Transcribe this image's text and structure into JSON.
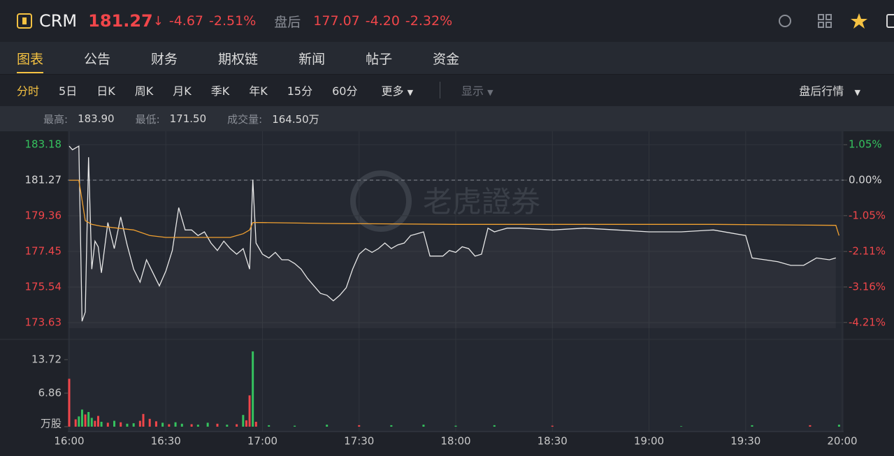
{
  "header": {
    "symbol": "CRM",
    "price": "181.27",
    "change": "-4.67",
    "change_pct": "-2.51%",
    "after_hours_label": "盘后",
    "after_price": "177.07",
    "after_change": "-4.20",
    "after_change_pct": "-2.32%"
  },
  "tabs": [
    "图表",
    "公告",
    "财务",
    "期权链",
    "新闻",
    "帖子",
    "资金"
  ],
  "periods": [
    "分时",
    "5日",
    "日K",
    "周K",
    "月K",
    "季K",
    "年K",
    "15分",
    "60分",
    "更多"
  ],
  "display": "显示",
  "after_hours_quote": "盘后行情",
  "stats": [
    {
      "label": "最高:",
      "value": "183.90"
    },
    {
      "label": "最低:",
      "value": "171.50"
    },
    {
      "label": "成交量:",
      "value": "164.50万"
    }
  ],
  "watermark": "老虎證券",
  "chart_data": [
    {
      "type": "line",
      "xlim": [
        960,
        1200
      ],
      "xticks": [
        {
          "value": 960,
          "label": "16:00"
        },
        {
          "value": 990,
          "label": "16:30"
        },
        {
          "value": 1020,
          "label": "17:00"
        },
        {
          "value": 1050,
          "label": "17:30"
        },
        {
          "value": 1080,
          "label": "18:00"
        },
        {
          "value": 1110,
          "label": "18:30"
        },
        {
          "value": 1140,
          "label": "19:00"
        },
        {
          "value": 1170,
          "label": "19:30"
        },
        {
          "value": 1200,
          "label": "20:00"
        }
      ],
      "ylim": [
        173.33,
        183.52
      ],
      "yticks": [
        183.18,
        181.27,
        179.36,
        177.45,
        175.54,
        173.63
      ],
      "ytick_colors": [
        "#35c25e",
        "#d8d8d8",
        "#f0464a",
        "#f0464a",
        "#f0464a",
        "#f0464a"
      ],
      "y2lim": [
        -4.38,
        1.24
      ],
      "y2ticks": [
        {
          "value": 1.05,
          "label": "1.05%"
        },
        {
          "value": 0,
          "label": "0.00%"
        },
        {
          "value": -1.05,
          "label": "-1.05%"
        },
        {
          "value": -2.11,
          "label": "-2.11%"
        },
        {
          "value": -3.16,
          "label": "-3.16%"
        },
        {
          "value": -4.21,
          "label": "-4.21%"
        }
      ],
      "y2tick_colors": [
        "#35c25e",
        "#d8d8d8",
        "#f0464a",
        "#f0464a",
        "#f0464a",
        "#f0464a"
      ],
      "baseline": 181.27,
      "grid": true,
      "series": [
        {
          "color": "#e8e8e8",
          "x": [
            960,
            961,
            963,
            964,
            965,
            966,
            967,
            968,
            969,
            970,
            972,
            974,
            976,
            978,
            980,
            982,
            984,
            986,
            988,
            990,
            992,
            994,
            996,
            998,
            1000,
            1002,
            1004,
            1006,
            1008,
            1010,
            1012,
            1014,
            1016,
            1017,
            1018,
            1020,
            1022,
            1024,
            1026,
            1028,
            1030,
            1032,
            1034,
            1036,
            1038,
            1040,
            1042,
            1044,
            1046,
            1048,
            1050,
            1052,
            1054,
            1056,
            1058,
            1060,
            1062,
            1064,
            1066,
            1068,
            1070,
            1072,
            1074,
            1076,
            1078,
            1080,
            1082,
            1084,
            1086,
            1088,
            1090,
            1092,
            1094,
            1096,
            1100,
            1110,
            1120,
            1130,
            1140,
            1150,
            1160,
            1170,
            1172,
            1176,
            1180,
            1184,
            1188,
            1192,
            1196,
            1198
          ],
          "values": [
            183.1,
            182.9,
            183.1,
            173.7,
            174.2,
            182.5,
            176.5,
            178.0,
            177.7,
            176.3,
            179.0,
            177.6,
            179.3,
            177.8,
            176.5,
            175.8,
            177.0,
            176.3,
            175.6,
            176.4,
            177.5,
            179.8,
            178.6,
            178.6,
            178.3,
            178.5,
            177.9,
            177.5,
            178.0,
            177.6,
            177.3,
            177.6,
            176.5,
            181.3,
            177.9,
            177.3,
            177.1,
            177.4,
            177.0,
            177.0,
            176.8,
            176.5,
            176.0,
            175.6,
            175.2,
            175.1,
            174.8,
            175.1,
            175.5,
            176.5,
            177.3,
            177.6,
            177.4,
            177.6,
            177.9,
            177.6,
            177.8,
            177.9,
            178.3,
            178.4,
            178.5,
            177.2,
            177.2,
            177.2,
            177.5,
            177.4,
            177.7,
            177.6,
            177.2,
            177.3,
            178.7,
            178.5,
            178.6,
            178.7,
            178.7,
            178.6,
            178.7,
            178.6,
            178.5,
            178.5,
            178.6,
            178.3,
            177.1,
            177.0,
            176.9,
            176.7,
            176.7,
            177.1,
            177.0,
            177.1
          ]
        },
        {
          "color": "#f0a030",
          "x": [
            960,
            963,
            964,
            965,
            967,
            970,
            975,
            980,
            985,
            990,
            1000,
            1010,
            1014,
            1016,
            1017,
            1020,
            1040,
            1080,
            1120,
            1160,
            1198,
            1199
          ],
          "values": [
            181.27,
            181.27,
            180.2,
            179.1,
            178.9,
            178.8,
            178.7,
            178.6,
            178.3,
            178.2,
            178.2,
            178.2,
            178.4,
            178.6,
            179.0,
            179.0,
            178.95,
            178.9,
            178.9,
            178.9,
            178.85,
            178.3
          ]
        }
      ]
    },
    {
      "type": "bar",
      "xlim": [
        960,
        1200
      ],
      "ylim": [
        0,
        15.86
      ],
      "yticks": [
        {
          "value": 13.72,
          "label": "13.72"
        },
        {
          "value": 6.86,
          "label": "6.86"
        },
        {
          "value": 0,
          "label": "万股"
        }
      ],
      "up_color": "#35c25e",
      "down_color": "#f0464a",
      "x": [
        960,
        962,
        963,
        964,
        965,
        966,
        967,
        968,
        969,
        970,
        972,
        974,
        976,
        978,
        980,
        982,
        983,
        985,
        987,
        989,
        991,
        993,
        995,
        998,
        1000,
        1003,
        1006,
        1009,
        1012,
        1014,
        1015,
        1016,
        1017,
        1018,
        1022,
        1030,
        1040,
        1050,
        1060,
        1070,
        1080,
        1092,
        1110,
        1150,
        1172,
        1190,
        1199
      ],
      "values": [
        9.8,
        1.5,
        2.1,
        3.5,
        2.5,
        3.0,
        1.8,
        1.2,
        2.2,
        1.0,
        0.8,
        1.2,
        0.9,
        0.6,
        0.7,
        1.2,
        2.6,
        1.6,
        1.1,
        0.8,
        0.5,
        0.9,
        0.6,
        0.5,
        0.4,
        0.8,
        0.6,
        0.4,
        0.5,
        2.4,
        1.3,
        6.4,
        15.4,
        1.0,
        0.3,
        0.2,
        0.4,
        0.3,
        0.3,
        0.4,
        0.2,
        0.3,
        0.2,
        0.1,
        0.3,
        0.3,
        0.4
      ],
      "up": [
        false,
        false,
        true,
        true,
        false,
        true,
        true,
        false,
        false,
        true,
        false,
        true,
        false,
        true,
        true,
        false,
        false,
        false,
        false,
        true,
        false,
        true,
        true,
        false,
        true,
        true,
        false,
        true,
        false,
        true,
        false,
        false,
        true,
        false,
        true,
        true,
        true,
        false,
        true,
        true,
        true,
        true,
        false,
        true,
        true,
        false,
        true
      ]
    }
  ]
}
